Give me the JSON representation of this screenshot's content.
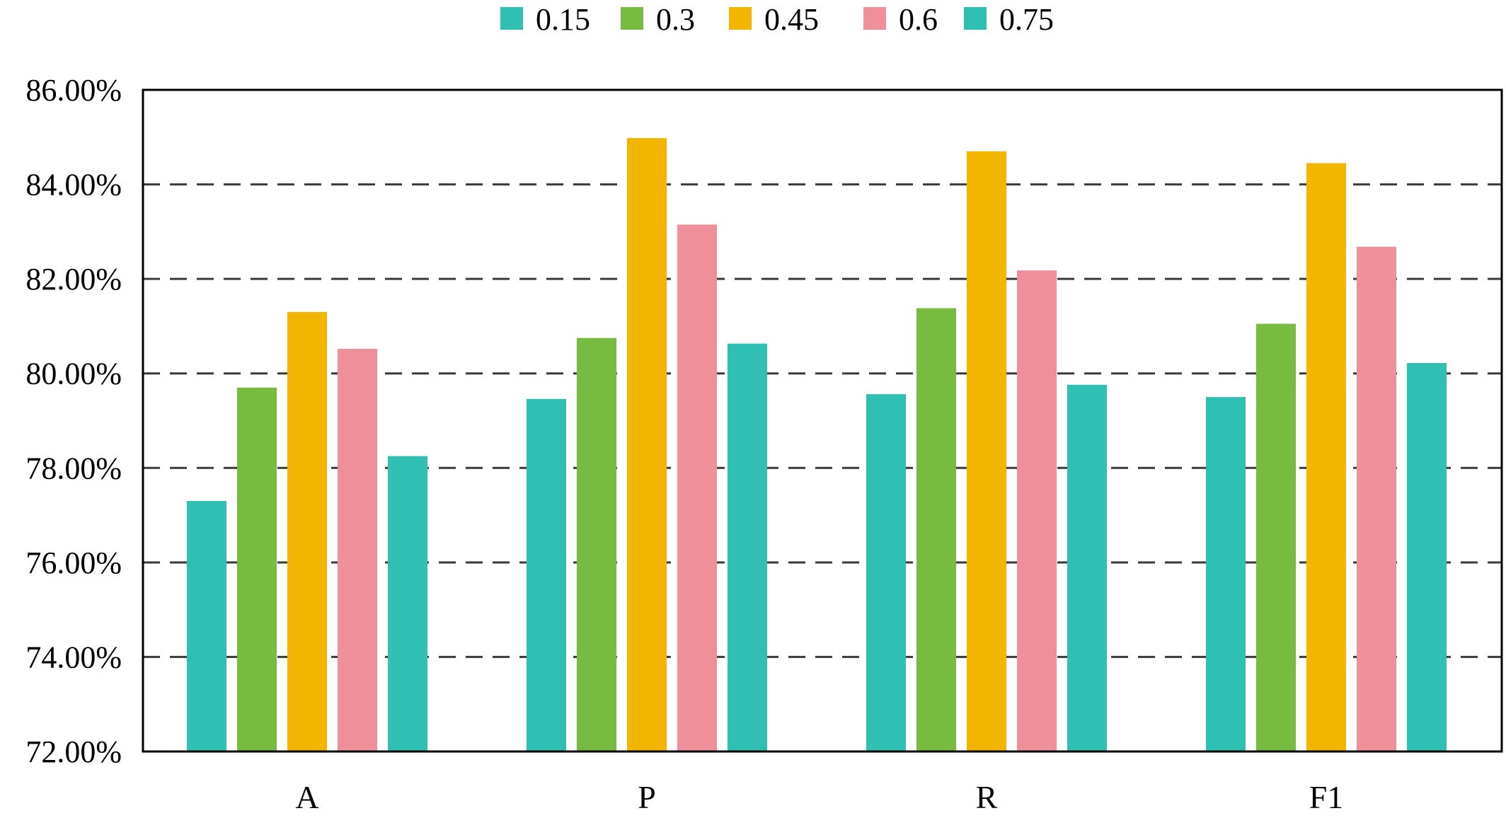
{
  "chart_data": {
    "type": "bar",
    "title": "",
    "xlabel": "",
    "ylabel": "",
    "categories": [
      "A",
      "P",
      "R",
      "F1"
    ],
    "series": [
      {
        "name": "0.15",
        "color": "#2FBFB3",
        "values": [
          77.3,
          79.46,
          79.56,
          79.5
        ]
      },
      {
        "name": "0.3",
        "color": "#77BC41",
        "values": [
          79.7,
          80.75,
          81.38,
          81.05
        ]
      },
      {
        "name": "0.45",
        "color": "#F2B600",
        "values": [
          81.3,
          84.98,
          84.7,
          84.45
        ]
      },
      {
        "name": "0.6",
        "color": "#EE8F9A",
        "values": [
          80.52,
          83.15,
          82.18,
          82.68
        ]
      },
      {
        "name": "0.75",
        "color": "#2FBFB3",
        "values": [
          78.25,
          80.63,
          79.76,
          80.22
        ]
      }
    ],
    "ylim": [
      72,
      86
    ],
    "yticks": [
      72,
      74,
      76,
      78,
      80,
      82,
      84,
      86
    ],
    "ytick_labels": [
      "72.00%",
      "74.00%",
      "76.00%",
      "78.00%",
      "80.00%",
      "82.00%",
      "84.00%",
      "86.00%"
    ],
    "grid": "horizontal-dashed",
    "legend_position": "top-center"
  }
}
